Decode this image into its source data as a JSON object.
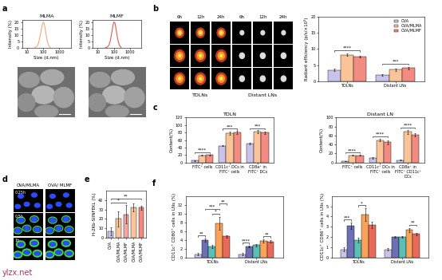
{
  "chart_data": [
    {
      "type": "line",
      "title": "MLMA",
      "x_label": "Size (d.nm)",
      "y_label": "Intensity (%)",
      "log": "x",
      "x": [
        30,
        40,
        50,
        60,
        70,
        80,
        90,
        100,
        115,
        130,
        150,
        180,
        220,
        280
      ],
      "values": [
        0,
        0.8,
        3,
        7,
        11.5,
        15.5,
        18.5,
        20,
        19,
        15.5,
        10.5,
        5,
        1.5,
        0
      ],
      "color": "#f6a878",
      "xlim": [
        5,
        5000
      ],
      "xticks": [
        10,
        100,
        1000
      ],
      "ylim": [
        0,
        22
      ],
      "yticks": [
        0,
        5,
        10,
        15,
        20
      ]
    },
    {
      "type": "line",
      "title": "MLMF",
      "x_label": "Size (d.nm)",
      "y_label": "Intensity (%)",
      "log": "x",
      "x": [
        30,
        40,
        50,
        60,
        70,
        80,
        90,
        100,
        115,
        130,
        150,
        180,
        220,
        280
      ],
      "values": [
        0,
        0.5,
        2,
        5.5,
        10,
        14.5,
        18,
        20,
        19.5,
        16,
        11,
        5.5,
        1.8,
        0
      ],
      "color": "#e8584a",
      "xlim": [
        5,
        5000
      ],
      "xticks": [
        10,
        100,
        1000
      ],
      "ylim": [
        0,
        22
      ],
      "yticks": [
        0,
        5,
        10,
        15,
        20
      ]
    },
    {
      "type": "bar",
      "y_label": "Radiant efficiency (p/s/×10⁹)",
      "categories": [
        "TDLNs",
        "Distant LNs"
      ],
      "series": [
        {
          "name": "OVA",
          "color": "#c9c3ea",
          "values": [
            3.5,
            2.0
          ],
          "errors": [
            0.3,
            0.2
          ]
        },
        {
          "name": "OVA/MLMA",
          "color": "#f9c49a",
          "values": [
            8.2,
            3.6
          ],
          "errors": [
            0.4,
            0.4
          ]
        },
        {
          "name": "OVA/MLMF",
          "color": "#f28b82",
          "values": [
            7.6,
            4.1
          ],
          "errors": [
            0.3,
            0.4
          ]
        }
      ],
      "ylim": [
        0,
        20
      ],
      "yticks": [
        0,
        5,
        10,
        15,
        20
      ],
      "legend": "upper right",
      "annotations": [
        {
          "text": "****",
          "category": 0,
          "from": 0,
          "to": 2
        },
        {
          "text": "***",
          "category": 1,
          "from": 0,
          "to": 2
        }
      ]
    },
    {
      "type": "bar",
      "title": "TDLN",
      "y_label": "Content(%)",
      "categories": [
        "FITC⁺ cells",
        "CD11c⁺ DCs in FITC⁺ cells",
        "CD8a⁺ in FITC⁺ DCs"
      ],
      "series": [
        {
          "name": "OVA",
          "color": "#c9c3ea",
          "values": [
            5,
            45,
            50
          ],
          "errors": [
            1,
            2,
            2
          ]
        },
        {
          "name": "OVA/MLMA",
          "color": "#f9c49a",
          "values": [
            19,
            78,
            82
          ],
          "errors": [
            1,
            5,
            4
          ]
        },
        {
          "name": "OVA/MLMF",
          "color": "#f28b82",
          "values": [
            20,
            80,
            80
          ],
          "errors": [
            1,
            4,
            3
          ]
        }
      ],
      "ylim": [
        0,
        120
      ],
      "yticks": [
        0,
        20,
        40,
        60,
        80,
        100,
        120
      ],
      "annotations": [
        {
          "text": "****",
          "category": 0,
          "from": 0,
          "to": 2
        },
        {
          "text": "***",
          "category": 1,
          "from": 0,
          "to": 2
        },
        {
          "text": "***",
          "category": 2,
          "from": 0,
          "to": 2
        }
      ]
    },
    {
      "type": "bar",
      "title": "Distant LN",
      "y_label": "Content(%)",
      "categories": [
        "FITC⁺ cells",
        "CD11c⁺ DCs in FITC⁺ cells",
        "CD8a⁺ in FITC⁺ CD11c⁺ DCs"
      ],
      "series": [
        {
          "name": "OVA",
          "color": "#c9c3ea",
          "values": [
            3,
            10,
            5
          ],
          "errors": [
            0.5,
            2,
            1
          ]
        },
        {
          "name": "OVA/MLMA",
          "color": "#f9c49a",
          "values": [
            16,
            50,
            68
          ],
          "errors": [
            1,
            3,
            5
          ]
        },
        {
          "name": "OVA/MLMF",
          "color": "#f28b82",
          "values": [
            16,
            45,
            62
          ],
          "errors": [
            1,
            4,
            4
          ]
        }
      ],
      "ylim": [
        0,
        100
      ],
      "yticks": [
        0,
        20,
        40,
        60,
        80,
        100
      ],
      "annotations": [
        {
          "text": "****",
          "category": 0,
          "from": 0,
          "to": 2
        },
        {
          "text": "****",
          "category": 1,
          "from": 0,
          "to": 2
        },
        {
          "text": "****",
          "category": 2,
          "from": 0,
          "to": 2
        }
      ]
    },
    {
      "type": "bar",
      "y_label": "H-2Kb-SIINFEKL (%)",
      "categories": [
        "OVA",
        "OVA/MLMA",
        "OVA/MLMF",
        "OVA/MLMA",
        "OVA/MLMF"
      ],
      "values": [
        7,
        20,
        25,
        32,
        32
      ],
      "errors": [
        4,
        8,
        10,
        4,
        2
      ],
      "colors": [
        "#c9c3ea",
        "#f9c49a",
        "#f4a6a0",
        "#f9c49a",
        "#f08a80"
      ],
      "ylim": [
        0,
        50
      ],
      "yticks": [
        0,
        10,
        20,
        30,
        40
      ],
      "annotations": [
        {
          "text": "*",
          "from": 0,
          "to": 2
        },
        {
          "text": "**",
          "from": 0,
          "to": 4
        }
      ]
    },
    {
      "type": "bar",
      "y_label": "CD11c⁺ CD80⁺ cells in LNs (%)",
      "categories": [
        "TDLNs",
        "Distant LNs"
      ],
      "series": [
        {
          "color": "#c9c3ea",
          "values": [
            0.8,
            0.8
          ],
          "errors": [
            0.2,
            0.2
          ]
        },
        {
          "color": "#6d6fb5",
          "values": [
            4.0,
            2.5
          ],
          "errors": [
            0.3,
            0.2
          ]
        },
        {
          "color": "#5bbfb5",
          "values": [
            2.5,
            2.8
          ],
          "errors": [
            0.3,
            0.2
          ]
        },
        {
          "color": "#f9a35a",
          "values": [
            7.8,
            3.8
          ],
          "errors": [
            1.5,
            0.3
          ]
        },
        {
          "color": "#e86a5a",
          "values": [
            4.8,
            3.7
          ],
          "errors": [
            0.3,
            0.2
          ]
        }
      ],
      "ylim": [
        0,
        14
      ],
      "yticks": [
        0,
        2,
        4,
        6,
        8,
        10,
        12
      ],
      "annotations": [
        {
          "text": "**",
          "category": 0,
          "from": 0,
          "to": 1
        },
        {
          "text": "*",
          "category": 0,
          "from": 2,
          "to": 3
        },
        {
          "text": "***",
          "category": 0,
          "from": 1,
          "to": 3
        },
        {
          "text": "**",
          "category": 0,
          "from": 3,
          "to": 4
        },
        {
          "text": "****",
          "category": 1,
          "from": 0,
          "to": 1
        },
        {
          "text": "**",
          "category": 1,
          "from": 3,
          "to": 4
        }
      ]
    },
    {
      "type": "bar",
      "y_label": "CD11c⁺ CD86⁺ cells in LNs (%)",
      "categories": [
        "TDLNs",
        "Distant LNs"
      ],
      "series": [
        {
          "color": "#c9c3ea",
          "values": [
            0.8,
            0.8
          ],
          "errors": [
            0.2,
            0.1
          ]
        },
        {
          "color": "#6d6fb5",
          "values": [
            3.1,
            2.0
          ],
          "errors": [
            0.3,
            0.1
          ]
        },
        {
          "color": "#5bbfb5",
          "values": [
            1.7,
            2.0
          ],
          "errors": [
            0.2,
            0.1
          ]
        },
        {
          "color": "#f9a35a",
          "values": [
            4.2,
            2.7
          ],
          "errors": [
            0.6,
            0.2
          ]
        },
        {
          "color": "#e86a5a",
          "values": [
            3.2,
            2.3
          ],
          "errors": [
            0.3,
            0.1
          ]
        }
      ],
      "ylim": [
        0,
        6
      ],
      "yticks": [
        0,
        1,
        2,
        3,
        4,
        5
      ],
      "annotations": [
        {
          "text": "***",
          "category": 0,
          "from": 0,
          "to": 1
        },
        {
          "text": "*",
          "category": 0,
          "from": 2,
          "to": 3
        },
        {
          "text": "**",
          "category": 1,
          "from": 3,
          "to": 4
        }
      ]
    }
  ],
  "figure": {
    "panel_labels": [
      "a",
      "b",
      "c",
      "d",
      "e",
      "f"
    ],
    "watermark": "ylzx.net",
    "b_images": {
      "times": [
        "6h",
        "12h",
        "24h",
        "6h",
        "12h",
        "24h"
      ],
      "groups": [
        "TDLNs",
        "Distant LNs"
      ]
    },
    "d_images": {
      "columns": [
        "OVA/MLMA",
        "OVA/ MLMF"
      ],
      "rows": [
        "0.25h",
        "0.5h",
        "1h"
      ]
    }
  }
}
